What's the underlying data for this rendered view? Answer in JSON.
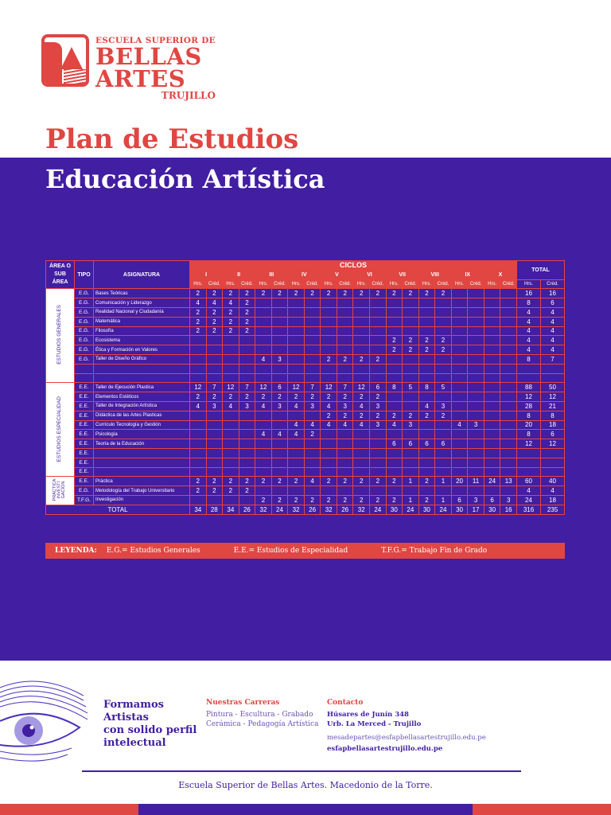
{
  "logo": {
    "line1": "ESCUELA SUPERIOR DE",
    "line2": "BELLAS",
    "line3": "ARTES",
    "line4": "TRUJILLO"
  },
  "header": {
    "title": "Plan de Estudios",
    "subtitle": "Educación Artística"
  },
  "colors": {
    "purple": "#411ea2",
    "red": "#e04642",
    "white": "#ffffff"
  },
  "table": {
    "headers": {
      "area": "ÁREA O SUB ÁREA",
      "tipo": "TIPO",
      "asignatura": "ASIGNATURA",
      "ciclos": "CICLOS",
      "total": "TOTAL",
      "hrs": "Hrs.",
      "cred": "Créd.",
      "cycles": [
        "I",
        "II",
        "III",
        "IV",
        "V",
        "VI",
        "VII",
        "VIII",
        "IX",
        "X"
      ]
    },
    "areas": {
      "eg": "ESTUDIOS GENERALES",
      "ee": "ESTUDIOS ESPECIALIDAD",
      "pi": "PRÁCTICA INVESTI GACION"
    },
    "rows": [
      {
        "tipo": "E.G.",
        "name": "Bases Teóricas",
        "v": [
          "2",
          "2",
          "2",
          "2",
          "2",
          "2",
          "2",
          "2",
          "2",
          "2",
          "2",
          "2",
          "2",
          "2",
          "2",
          "2",
          "",
          "",
          "",
          ""
        ],
        "th": "16",
        "tc": "16"
      },
      {
        "tipo": "E.G.",
        "name": "Comunicación y Liderazgo",
        "v": [
          "4",
          "4",
          "4",
          "2",
          "",
          "",
          "",
          "",
          "",
          "",
          "",
          "",
          "",
          "",
          "",
          "",
          "",
          "",
          "",
          ""
        ],
        "th": "8",
        "tc": "6"
      },
      {
        "tipo": "E.G.",
        "name": "Realidad Nacional y Ciudadanía",
        "v": [
          "2",
          "2",
          "2",
          "2",
          "",
          "",
          "",
          "",
          "",
          "",
          "",
          "",
          "",
          "",
          "",
          "",
          "",
          "",
          "",
          ""
        ],
        "th": "4",
        "tc": "4"
      },
      {
        "tipo": "E.G.",
        "name": "Matemática",
        "v": [
          "2",
          "2",
          "2",
          "2",
          "",
          "",
          "",
          "",
          "",
          "",
          "",
          "",
          "",
          "",
          "",
          "",
          "",
          "",
          "",
          ""
        ],
        "th": "4",
        "tc": "4"
      },
      {
        "tipo": "E.G.",
        "name": "Filosofía",
        "v": [
          "2",
          "2",
          "2",
          "2",
          "",
          "",
          "",
          "",
          "",
          "",
          "",
          "",
          "",
          "",
          "",
          "",
          "",
          "",
          "",
          ""
        ],
        "th": "4",
        "tc": "4"
      },
      {
        "tipo": "E.G.",
        "name": "Ecosistema",
        "v": [
          "",
          "",
          "",
          "",
          "",
          "",
          "",
          "",
          "",
          "",
          "",
          "",
          "2",
          "2",
          "2",
          "2",
          "",
          "",
          "",
          ""
        ],
        "th": "4",
        "tc": "4"
      },
      {
        "tipo": "E.G.",
        "name": "Ética y Formación en Valores",
        "v": [
          "",
          "",
          "",
          "",
          "",
          "",
          "",
          "",
          "",
          "",
          "",
          "",
          "2",
          "2",
          "2",
          "2",
          "",
          "",
          "",
          ""
        ],
        "th": "4",
        "tc": "4"
      },
      {
        "tipo": "E.G.",
        "name": "Taller de Diseño Gráfico",
        "v": [
          "",
          "",
          "",
          "",
          "4",
          "3",
          "",
          "",
          "2",
          "2",
          "2",
          "2",
          "",
          "",
          "",
          "",
          "",
          "",
          "",
          ""
        ],
        "th": "8",
        "tc": "7"
      },
      {
        "tipo": "",
        "name": "",
        "v": [
          "",
          "",
          "",
          "",
          "",
          "",
          "",
          "",
          "",
          "",
          "",
          "",
          "",
          "",
          "",
          "",
          "",
          "",
          "",
          ""
        ],
        "th": "",
        "tc": ""
      },
      {
        "tipo": "",
        "name": "",
        "v": [
          "",
          "",
          "",
          "",
          "",
          "",
          "",
          "",
          "",
          "",
          "",
          "",
          "",
          "",
          "",
          "",
          "",
          "",
          "",
          ""
        ],
        "th": "",
        "tc": ""
      },
      {
        "tipo": "E.E.",
        "name": "Taller de Ejecución Plastica",
        "v": [
          "12",
          "7",
          "12",
          "7",
          "12",
          "6",
          "12",
          "7",
          "12",
          "7",
          "12",
          "6",
          "8",
          "5",
          "8",
          "5",
          "",
          "",
          "",
          ""
        ],
        "th": "88",
        "tc": "50"
      },
      {
        "tipo": "E.E.",
        "name": "Elementos Estéticos",
        "v": [
          "2",
          "2",
          "2",
          "2",
          "2",
          "2",
          "2",
          "2",
          "2",
          "2",
          "2",
          "2",
          "",
          "",
          "",
          "",
          "",
          "",
          "",
          ""
        ],
        "th": "12",
        "tc": "12"
      },
      {
        "tipo": "E.E.",
        "name": "Taller de Integración Artística",
        "v": [
          "4",
          "3",
          "4",
          "3",
          "4",
          "3",
          "4",
          "3",
          "4",
          "3",
          "4",
          "3",
          "",
          "",
          "4",
          "3",
          "",
          "",
          "",
          ""
        ],
        "th": "28",
        "tc": "21"
      },
      {
        "tipo": "E.E.",
        "name": "Didáctica de las Artes Plasticas",
        "v": [
          "",
          "",
          "",
          "",
          "",
          "",
          "",
          "",
          "2",
          "2",
          "2",
          "2",
          "2",
          "2",
          "2",
          "2",
          "",
          "",
          "",
          ""
        ],
        "th": "8",
        "tc": "8"
      },
      {
        "tipo": "E.E.",
        "name": "Currículo Tecnología y Gestión",
        "v": [
          "",
          "",
          "",
          "",
          "",
          "",
          "4",
          "4",
          "4",
          "4",
          "4",
          "3",
          "4",
          "3",
          "",
          "",
          "4",
          "3",
          "",
          ""
        ],
        "th": "20",
        "tc": "18"
      },
      {
        "tipo": "E.E.",
        "name": "Psicología",
        "v": [
          "",
          "",
          "",
          "",
          "4",
          "4",
          "4",
          "2",
          "",
          "",
          "",
          "",
          "",
          "",
          "",
          "",
          "",
          "",
          "",
          ""
        ],
        "th": "8",
        "tc": "6"
      },
      {
        "tipo": "E.E.",
        "name": "Teoría de la Educación",
        "v": [
          "",
          "",
          "",
          "",
          "",
          "",
          "",
          "",
          "",
          "",
          "",
          "",
          "6",
          "6",
          "6",
          "6",
          "",
          "",
          "",
          ""
        ],
        "th": "12",
        "tc": "12"
      },
      {
        "tipo": "E.E.",
        "name": "",
        "v": [
          "",
          "",
          "",
          "",
          "",
          "",
          "",
          "",
          "",
          "",
          "",
          "",
          "",
          "",
          "",
          "",
          "",
          "",
          "",
          ""
        ],
        "th": "",
        "tc": ""
      },
      {
        "tipo": "E.E.",
        "name": "",
        "v": [
          "",
          "",
          "",
          "",
          "",
          "",
          "",
          "",
          "",
          "",
          "",
          "",
          "",
          "",
          "",
          "",
          "",
          "",
          "",
          ""
        ],
        "th": "",
        "tc": ""
      },
      {
        "tipo": "E.E.",
        "name": "",
        "v": [
          "",
          "",
          "",
          "",
          "",
          "",
          "",
          "",
          "",
          "",
          "",
          "",
          "",
          "",
          "",
          "",
          "",
          "",
          "",
          ""
        ],
        "th": "",
        "tc": ""
      },
      {
        "tipo": "E.E.",
        "name": "Práctica",
        "v": [
          "2",
          "2",
          "2",
          "2",
          "2",
          "2",
          "2",
          "4",
          "2",
          "2",
          "2",
          "2",
          "2",
          "1",
          "2",
          "1",
          "20",
          "11",
          "24",
          "13"
        ],
        "th": "60",
        "tc": "40"
      },
      {
        "tipo": "E.G.",
        "name": "Metodología del Trabajo Universitario",
        "v": [
          "2",
          "2",
          "2",
          "2",
          "",
          "",
          "",
          "",
          "",
          "",
          "",
          "",
          "",
          "",
          "",
          "",
          "",
          "",
          "",
          ""
        ],
        "th": "4",
        "tc": "4"
      },
      {
        "tipo": "T.F.G.",
        "name": "Investigación",
        "v": [
          "",
          "",
          "",
          "",
          "2",
          "2",
          "2",
          "2",
          "2",
          "2",
          "2",
          "2",
          "2",
          "1",
          "2",
          "1",
          "6",
          "3",
          "6",
          "3"
        ],
        "th": "24",
        "tc": "18"
      }
    ],
    "total": {
      "label": "TOTAL",
      "v": [
        "34",
        "28",
        "34",
        "26",
        "32",
        "24",
        "32",
        "26",
        "32",
        "26",
        "32",
        "24",
        "30",
        "24",
        "30",
        "24",
        "30",
        "17",
        "30",
        "16"
      ],
      "th": "316",
      "tc": "235"
    }
  },
  "legend": {
    "label": "LEYENDA:",
    "items": [
      "E.G.= Estudios Generales",
      "E.E.= Estudios de Especialidad",
      "T.F.G.= Trabajo Fin de Grado"
    ]
  },
  "footer": {
    "slogan": [
      "Formamos",
      "Artistas",
      "con solido perfil",
      "intelectual"
    ],
    "carreras_title": "Nuestras Carreras",
    "carreras_l1": "Pintura - Escultura - Grabado",
    "carreras_l2": "Cerámica - Pedagogía Artística",
    "contacto_title": "Contacto",
    "address_l1": "Húsares de Junín 348",
    "address_l2": "Urb. La Merced - Trujillo",
    "email": "mesadepartes@esfapbellasartestrujillo.edu.pe",
    "web": "esfapbellasartestrujillo.edu.pe",
    "school_name": "Escuela Superior de Bellas Artes. Macedonio de la Torre."
  }
}
